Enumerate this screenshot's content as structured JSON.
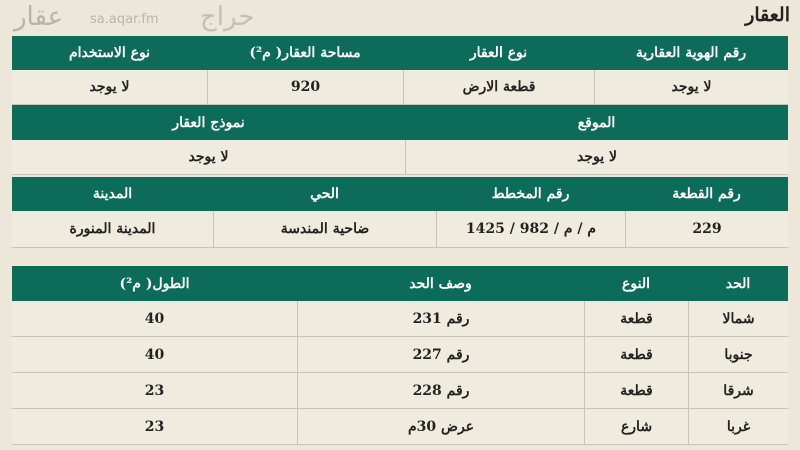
{
  "title": "العقار",
  "colors": {
    "header_bg": "#0d6b5a",
    "page_bg": "#ece7d8"
  },
  "table1": {
    "row1_headers": [
      "رقم الهوية العقارية",
      "نوع العقار",
      "مساحة العقار( م²)",
      "نوع الاستخدام"
    ],
    "row1_values": [
      "لا يوجد",
      "قطعة الارض",
      "920",
      "لا يوجد"
    ],
    "row2_headers": [
      "الموقع",
      "نموذج العقار"
    ],
    "row2_values": [
      "لا يوجد",
      "لا يوجد"
    ],
    "row3_headers": [
      "رقم القطعة",
      "رقم المخطط",
      "الحي",
      "المدينة"
    ],
    "row3_values": [
      "229",
      "م / م / 982 / 1425",
      "ضاحية المندسة",
      "المدينة المنورة"
    ]
  },
  "table2": {
    "headers": [
      "الحد",
      "النوع",
      "وصف الحد",
      "الطول( م²)"
    ],
    "rows": [
      [
        "شمالا",
        "قطعة",
        "رقم 231",
        "40"
      ],
      [
        "جنوبا",
        "قطعة",
        "رقم 227",
        "40"
      ],
      [
        "شرقا",
        "قطعة",
        "رقم 228",
        "23"
      ],
      [
        "غربا",
        "شارع",
        "عرض 30م",
        "23"
      ]
    ]
  },
  "watermarks": {
    "aqar_logo": "عقار",
    "aqar_url": "sa.aqar.fm",
    "haraj_logo": "حراج"
  }
}
